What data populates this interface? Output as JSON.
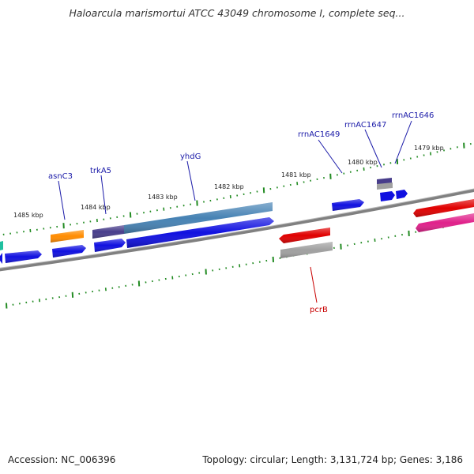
{
  "title": "Haloarcula marismortui ATCC 43049 chromosome I, complete seq...",
  "footer": {
    "accession": "Accession: NC_006396",
    "summary": "Topology: circular; Length: 3,131,724 bp; Genes: 3,186"
  },
  "kbp_labels": [
    "1485 kbp",
    "1484 kbp",
    "1483 kbp",
    "1482 kbp",
    "1481 kbp",
    "1480 kbp",
    "1479 kbp"
  ],
  "gene_labels": [
    "asnC3",
    "trkA5",
    "yhdG",
    "rrnAC1649",
    "rrnAC1647",
    "rrnAC1646",
    "pcrB"
  ],
  "colors": {
    "blue": "#1010e0",
    "steel": "#4682b4",
    "purple": "#483d8b",
    "orange": "#ff8c00",
    "red": "#e00000",
    "pink": "#e0208a",
    "gray": "#a0a0a0",
    "teal": "#20c0a0",
    "tick": "#228b22",
    "backbone": "#808080"
  }
}
